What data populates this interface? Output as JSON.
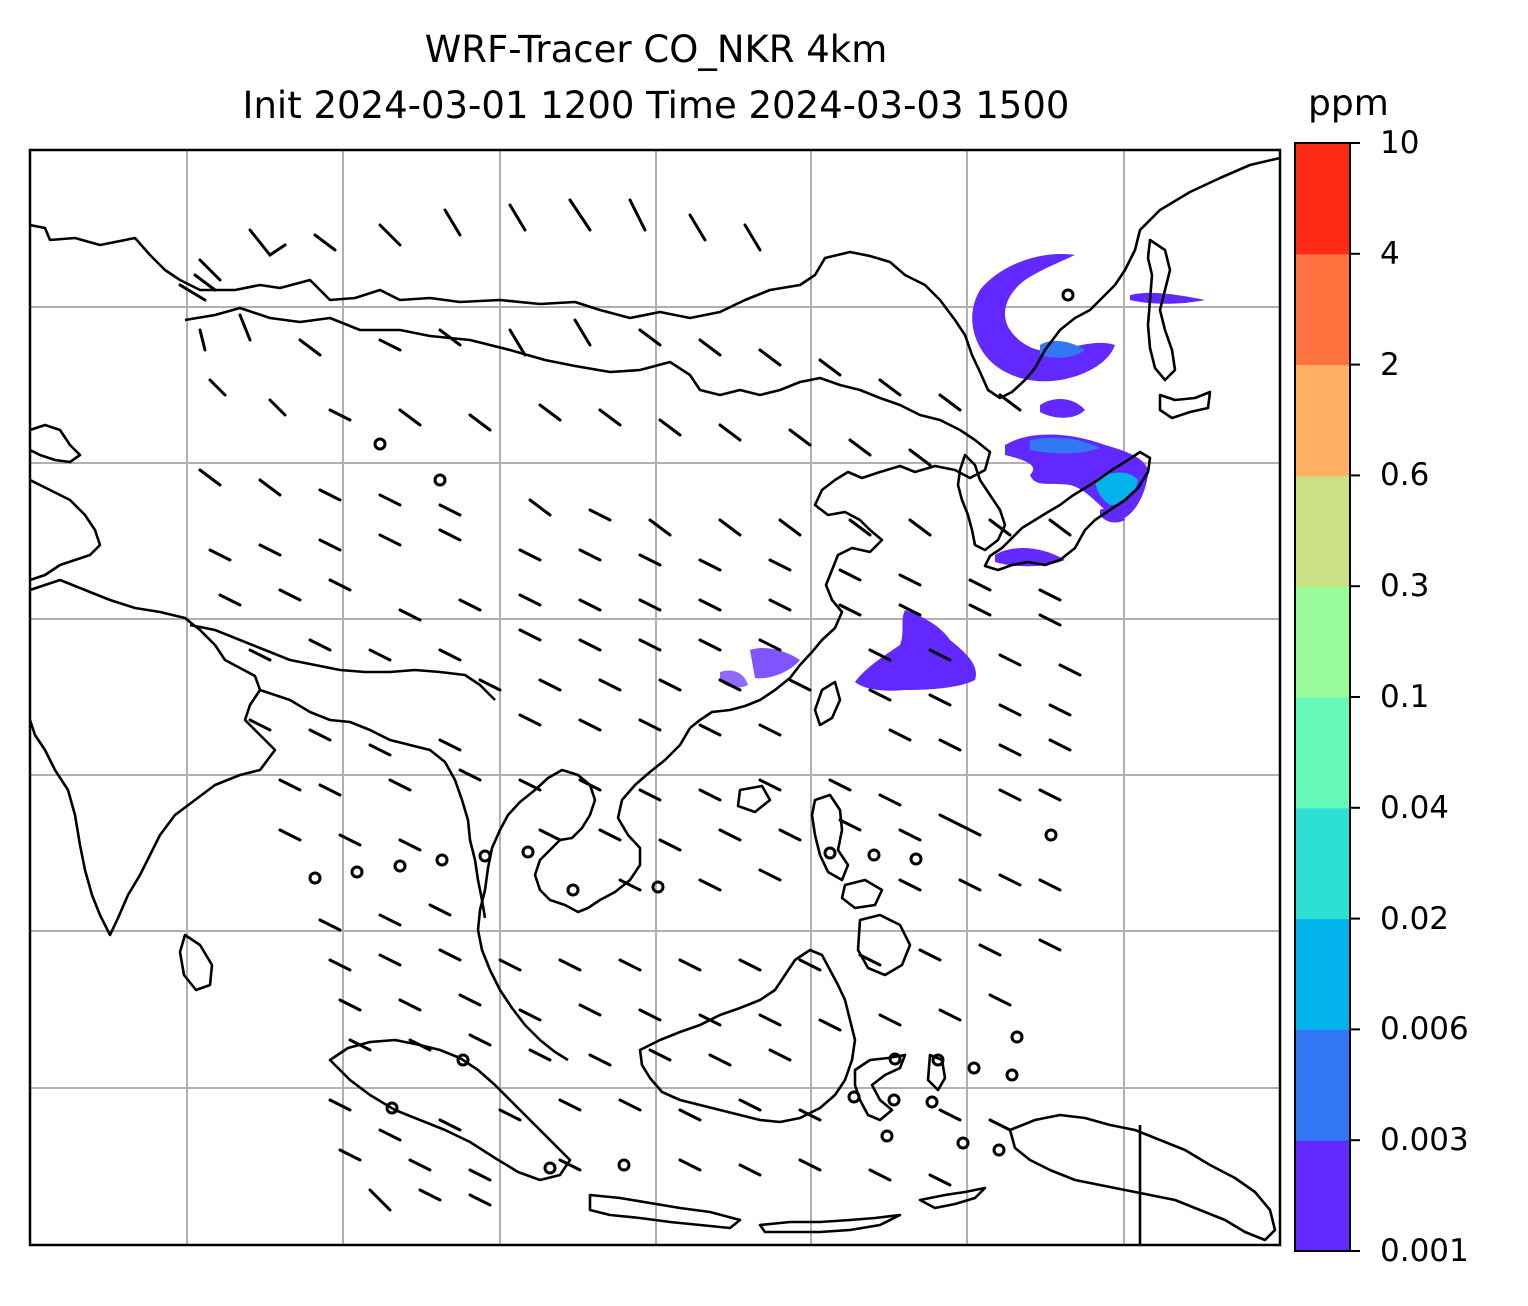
{
  "title_line1": "WRF-Tracer CO_NKR 4km",
  "title_line2": "Init 2024-03-01 1200 Time 2024-03-03 1500",
  "colorbar": {
    "unit": "ppm",
    "levels": [
      "0.001",
      "0.003",
      "0.006",
      "0.02",
      "0.04",
      "0.1",
      "0.3",
      "0.6",
      "2",
      "4",
      "10"
    ],
    "colors": [
      "#6129ff",
      "#3477f5",
      "#02b3ec",
      "#2ee0d4",
      "#67fbbb",
      "#9afb9a",
      "#ccdf85",
      "#ffb063",
      "#ff7240",
      "#ff2a16"
    ]
  },
  "plume_colors": {
    "main": "#6129ff",
    "mid": "#3477f5",
    "core": "#02b3ec"
  }
}
